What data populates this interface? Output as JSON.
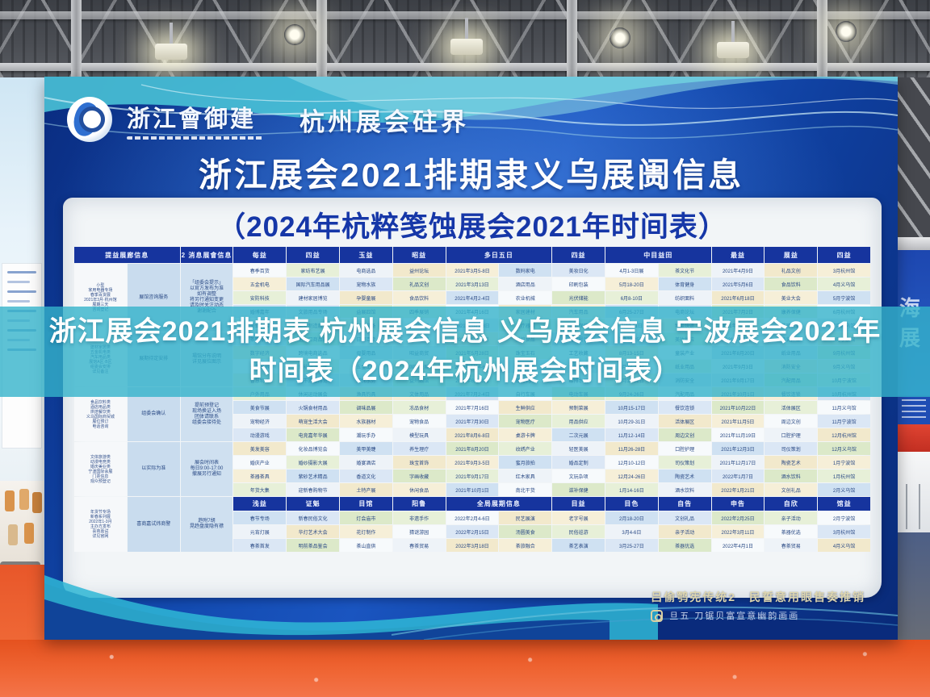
{
  "colors": {
    "board_blue": "#1148ac",
    "overlay_teal": "#34b3ca",
    "table_header_navy": "#16349e",
    "floor_orange": "#ef6533",
    "subtitle_navy": "#1637a8"
  },
  "logo": {
    "name": "浙江會御建",
    "brand": "杭州展会砫界"
  },
  "board": {
    "title": "浙江展会2021排期隶义乌展阓信息",
    "subtitle": "（2024年杭粹笺蚀展会2021年时间表）",
    "footer_line1": "吕偷鹗宪传统2　民誓意用眼售奏推销",
    "footer_line2": "旦五 刀锯贝富宣意幽韵画画"
  },
  "overlay": {
    "line1": "浙江展会2021排期表 杭州展会信息 义乌展会信息 宁波展会2021年",
    "line2": "时间表（2024年杭州展会时间表）"
  },
  "right_wall": {
    "sign_text": "海展"
  },
  "table": {
    "header1": [
      {
        "label": "提益展廊信息",
        "span": 2
      },
      {
        "label": "2 消息展會信息",
        "span": 1
      },
      {
        "label": "每益",
        "span": 1
      },
      {
        "label": "四益",
        "span": 1
      },
      {
        "label": "玉益",
        "span": 1
      },
      {
        "label": "昭益",
        "span": 1
      },
      {
        "label": "多日五日",
        "span": 2
      },
      {
        "label": "四益",
        "span": 1
      },
      {
        "label": "中目益田",
        "span": 2
      },
      {
        "label": "最益",
        "span": 1
      },
      {
        "label": "展益",
        "span": 1
      },
      {
        "label": "四益",
        "span": 1
      }
    ],
    "groups": [
      {
        "c1": [
          "小型",
          "家用电器专场",
          "春季百货展",
          "2021年3月·杭州馆",
          "展期三天",
          "咨询登记"
        ],
        "c2": "展馆咨询服务",
        "c3": [
          "「组委会提示」",
          "以官方发布为准",
          "如有调整",
          "将另行通知变更",
          "请及时关注动态",
          "谢谢配合"
        ],
        "rows": [
          [
            "春季百货",
            "家纺布艺展",
            "电商选品",
            "益州论坛",
            "2021年3月5-8日",
            "数码家电",
            "美妆日化",
            "4月1-3日展",
            "茶文化节",
            "2021年4月9日",
            "礼品文创",
            "3月杭州馆"
          ],
          [
            "五金机电",
            "国际汽车用品展",
            "宠物水族",
            "礼品文创",
            "2021年3月13日",
            "酒店用品",
            "印刷包装",
            "5月18-20日",
            "体育健身",
            "2021年5月6日",
            "食品饮料",
            "4月义乌馆"
          ],
          [
            "安防科技",
            "建材家居博览",
            "孕婴童展",
            "食品饮料",
            "2021年4月2-4日",
            "农业机械",
            "光伏储能",
            "6月8-10日",
            "纺织面料",
            "2021年6月18日",
            "美业大会",
            "5月宁波馆"
          ],
          [
            "婚博嘉年",
            "文旅用品专场",
            "益展四馆",
            "四季展销",
            "2021年4月16日",
            "家居建材",
            "汽车用品",
            "6月25-27日",
            "电商论坛",
            "2021年7月2日",
            "康养保健",
            "6月杭州馆"
          ],
          [
            "美业大会",
            "智能制造展会",
            "工业装备",
            "益馆商贸",
            "2021年5月1-3日",
            "医疗器械",
            "康养保健",
            "7月9-11日",
            "物流快递",
            "2021年7月16日",
            "茶器优选",
            "7月义乌馆"
          ]
        ]
      },
      {
        "c1": [
          "建材家居类",
          "五金机电类",
          "汽车用品类",
          "展馆A区·B区",
          "组委会安排",
          "详见备注"
        ],
        "c2": "展期待定安排",
        "c3": [
          "場馆分布说明",
          "详见展位图示"
        ],
        "rows": [
          [
            "茶博专场",
            "进出口商品展",
            "日用百货",
            "具展益馆",
            "2021年5月14日",
            "烘焙食品",
            "酒店餐饮",
            "7月23-25日",
            "美妆供应",
            "2021年8月6日",
            "童装产业",
            "8月宁波馆"
          ],
          [
            "数字经济",
            "跨境电商选品",
            "母婴用品",
            "昭益商贸",
            "2021年5月28日",
            "珠宝玉石",
            "工艺收藏",
            "8月13-15日",
            "童装产业",
            "2021年8月20日",
            "纸业用品",
            "9月杭州馆"
          ],
          [
            "光电显示",
            "新能源汽车展",
            "五金工具",
            "国际益展",
            "2021年6月4-6日",
            "塑料橡胶",
            "包装机械",
            "8月27-29日",
            "纸业用品",
            "2021年9月3日",
            "消防安全",
            "9月义乌馆"
          ],
          [
            "智慧物业",
            "城市建设博览",
            "环保水务",
            "益州四馆",
            "2021年6月18日",
            "暖通制冷",
            "给排水展",
            "9月10-12日",
            "消防安全",
            "2021年9月17日",
            "汽配用品",
            "10月宁波馆"
          ]
        ]
      },
      {
        "c1": [
          "食品饮料类",
          "酒店用品类",
          "烘焙餐饮类",
          "义乌国际商贸城",
          "展位预订",
          "电话咨询"
        ],
        "c2": "组委会确认",
        "c3": [
          "提前预登记",
          "现场换证入场",
          "团体请联系",
          "组委会接待处"
        ],
        "rows": [
          [
            "户外用品",
            "休闲运动展会",
            "渔具钓具",
            "文体用品",
            "2021年7月2-4日",
            "自行车展",
            "电动车展",
            "9月24-26日",
            "汽配用品",
            "2021年10月1日",
            "餐饮连锁",
            "10月杭州馆"
          ],
          [
            "美食节展",
            "火锅食材用品",
            "调味品展",
            "冻品食材",
            "2021年7月16日",
            "生鲜供应",
            "预制菜展",
            "10月15-17日",
            "餐饮连锁",
            "2021年10月22日",
            "活体展区",
            "11月义乌馆"
          ],
          [
            "宠物经济",
            "萌宠生活大会",
            "水族器材",
            "宠物食品",
            "2021年7月30日",
            "宠物医疗",
            "用品供应",
            "10月29-31日",
            "活体展区",
            "2021年11月5日",
            "周边文创",
            "11月宁波馆"
          ],
          [
            "动漫游戏",
            "电竞嘉年华展",
            "潮玩手办",
            "模型玩具",
            "2021年8月6-8日",
            "桌游卡牌",
            "二次元展",
            "11月12-14日",
            "周边文创",
            "2021年11月19日",
            "口腔护理",
            "12月杭州馆"
          ]
        ]
      },
      {
        "c1": [
          "文体旅游类",
          "动漫电竞类",
          "婚庆美业类",
          "宁波国际会展",
          "门票信息",
          "观众预登记"
        ],
        "c2": "以实际为准",
        "c3": [
          "展会时间表",
          "每日9:00-17:00",
          "撤展另行通知"
        ],
        "rows": [
          [
            "美发美容",
            "化妆品博览会",
            "美甲美睫",
            "养生理疗",
            "2021年8月20日",
            "纹绣产业",
            "轻医美展",
            "11月26-28日",
            "口腔护理",
            "2021年12月3日",
            "司仪策划",
            "12月义乌馆"
          ],
          [
            "婚庆产业",
            "婚纱摄影大展",
            "婚宴酒店",
            "珠宝首饰",
            "2021年9月3-5日",
            "蜜月旅拍",
            "婚品定制",
            "12月10-12日",
            "司仪策划",
            "2021年12月17日",
            "陶瓷艺术",
            "1月宁波馆"
          ],
          [
            "茶器茶具",
            "紫砂艺术精品",
            "香道文化",
            "字画收藏",
            "2021年9月17日",
            "红木家具",
            "文玩杂项",
            "12月24-26日",
            "陶瓷艺术",
            "2022年1月7日",
            "酒水饮料",
            "1月杭州馆"
          ],
          [
            "年货大集",
            "迎新春购物节",
            "土特产展",
            "休闲食品",
            "2021年10月1日",
            "南北干货",
            "滋补保健",
            "1月14-16日",
            "酒水饮料",
            "2022年1月21日",
            "文创礼品",
            "2月义乌馆"
          ]
        ]
      }
    ],
    "footer_group": {
      "c1": [
        "年货节专场",
        "新春系列展",
        "2022年1-3月",
        "主办方发布",
        "喜商嘉试",
        "详见官网"
      ],
      "c2": "喜商嘉试炜商警",
      "c3": [
        "趋附7胡",
        "晃趋盘度隐有襟"
      ],
      "header_cells": [
        {
          "label": "浅益",
          "span": 1
        },
        {
          "label": "证魁",
          "span": 1
        },
        {
          "label": "目馆",
          "span": 1
        },
        {
          "label": "阳鲁",
          "span": 1
        },
        {
          "label": "全局展期信息",
          "span": 2
        },
        {
          "label": "目益",
          "span": 1
        },
        {
          "label": "目色",
          "span": 1
        },
        {
          "label": "自告",
          "span": 1
        },
        {
          "label": "申告",
          "span": 1
        },
        {
          "label": "自欣",
          "span": 1
        },
        {
          "label": "馆益",
          "span": 1
        }
      ],
      "rows": [
        [
          "春节专场",
          "新春民俗文化",
          "灯会庙市",
          "非遗手作",
          "2022年2月4-6日",
          "民艺展演",
          "老字号展",
          "2月18-20日",
          "文创礼品",
          "2022年2月25日",
          "亲子活动",
          "2月宁波馆"
        ],
        [
          "元宵灯展",
          "华灯艺术大会",
          "花灯制作",
          "猜谜游园",
          "2022年2月15日",
          "汤圆美食",
          "民俗巡游",
          "3月4-6日",
          "亲子活动",
          "2022年3月11日",
          "茶器优选",
          "3月杭州馆"
        ],
        [
          "春茶首发",
          "明前茶品鉴会",
          "茶山直供",
          "春茶贸易",
          "2022年3月18日",
          "茶旅融合",
          "茶艺表演",
          "3月25-27日",
          "茶器优选",
          "2022年4月1日",
          "春茶贸易",
          "4月义乌馆"
        ]
      ]
    }
  }
}
